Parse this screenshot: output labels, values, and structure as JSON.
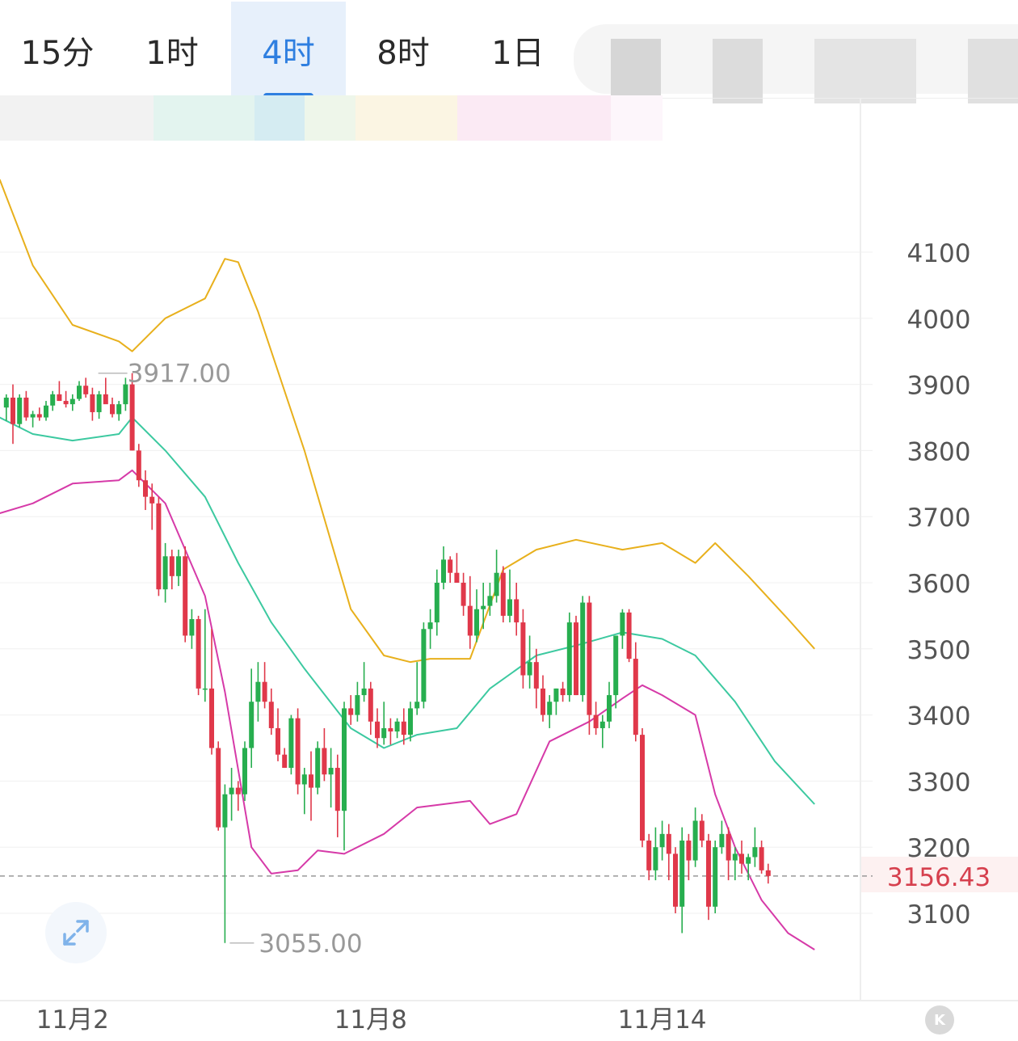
{
  "tabs": [
    {
      "label": "15分",
      "active": false
    },
    {
      "label": "1时",
      "active": false
    },
    {
      "label": "4时",
      "active": true
    },
    {
      "label": "8时",
      "active": false
    },
    {
      "label": "1日",
      "active": false
    }
  ],
  "colors": {
    "active_tab": "#2f7fe0",
    "up_candle": "#27ae4f",
    "down_candle": "#e0384a",
    "upper_band": "#e8b01c",
    "middle_band": "#3cc9a0",
    "lower_band": "#d63aa8",
    "current_price": "#d6404e"
  },
  "icons": {
    "expand": "expand-arrows-icon",
    "k": "k-logo-icon"
  },
  "k_button_label": "K",
  "chart_data": {
    "type": "candlestick",
    "title": "",
    "interval": "4时",
    "y_ticks": [
      4100,
      4000,
      3900,
      3800,
      3700,
      3600,
      3500,
      3400,
      3300,
      3200,
      3100
    ],
    "y_range": [
      3030,
      4230
    ],
    "x_ticks": [
      {
        "label": "11月2",
        "index": 10
      },
      {
        "label": "11月8",
        "index": 55
      },
      {
        "label": "11月14",
        "index": 99
      }
    ],
    "current_price": 3156.43,
    "current_price_label": "3156.43",
    "high_marker": {
      "index": 19,
      "value": 3917.0,
      "label": "3917.00"
    },
    "low_marker": {
      "index": 33,
      "value": 3055.0,
      "label": "3055.00"
    },
    "candles": [
      [
        3865,
        3885,
        3845,
        3880
      ],
      [
        3880,
        3900,
        3810,
        3840
      ],
      [
        3840,
        3885,
        3835,
        3880
      ],
      [
        3880,
        3890,
        3845,
        3850
      ],
      [
        3850,
        3860,
        3835,
        3855
      ],
      [
        3855,
        3865,
        3845,
        3850
      ],
      [
        3850,
        3875,
        3845,
        3868
      ],
      [
        3868,
        3890,
        3860,
        3885
      ],
      [
        3885,
        3905,
        3875,
        3875
      ],
      [
        3875,
        3890,
        3865,
        3870
      ],
      [
        3870,
        3885,
        3860,
        3878
      ],
      [
        3878,
        3905,
        3875,
        3898
      ],
      [
        3898,
        3910,
        3880,
        3885
      ],
      [
        3885,
        3895,
        3845,
        3858
      ],
      [
        3858,
        3890,
        3848,
        3885
      ],
      [
        3885,
        3910,
        3878,
        3870
      ],
      [
        3870,
        3880,
        3850,
        3855
      ],
      [
        3855,
        3875,
        3845,
        3870
      ],
      [
        3870,
        3910,
        3860,
        3900
      ],
      [
        3900,
        3917,
        3800,
        3800
      ],
      [
        3800,
        3810,
        3745,
        3755
      ],
      [
        3755,
        3770,
        3710,
        3730
      ],
      [
        3730,
        3750,
        3680,
        3720
      ],
      [
        3720,
        3730,
        3580,
        3590
      ],
      [
        3590,
        3660,
        3570,
        3640
      ],
      [
        3640,
        3650,
        3590,
        3610
      ],
      [
        3610,
        3650,
        3595,
        3640
      ],
      [
        3640,
        3655,
        3510,
        3520
      ],
      [
        3520,
        3560,
        3500,
        3545
      ],
      [
        3545,
        3550,
        3430,
        3440
      ],
      [
        3440,
        3560,
        3420,
        3440
      ],
      [
        3440,
        3530,
        3340,
        3350
      ],
      [
        3350,
        3360,
        3225,
        3230
      ],
      [
        3230,
        3295,
        3055,
        3280
      ],
      [
        3280,
        3320,
        3240,
        3290
      ],
      [
        3290,
        3300,
        3255,
        3280
      ],
      [
        3280,
        3360,
        3270,
        3350
      ],
      [
        3350,
        3470,
        3320,
        3420
      ],
      [
        3420,
        3480,
        3390,
        3450
      ],
      [
        3450,
        3480,
        3410,
        3420
      ],
      [
        3420,
        3440,
        3370,
        3380
      ],
      [
        3380,
        3410,
        3330,
        3340
      ],
      [
        3340,
        3350,
        3320,
        3320
      ],
      [
        3320,
        3400,
        3310,
        3395
      ],
      [
        3395,
        3410,
        3280,
        3295
      ],
      [
        3295,
        3320,
        3250,
        3310
      ],
      [
        3310,
        3345,
        3240,
        3290
      ],
      [
        3290,
        3360,
        3280,
        3350
      ],
      [
        3350,
        3380,
        3300,
        3310
      ],
      [
        3310,
        3350,
        3260,
        3320
      ],
      [
        3320,
        3340,
        3215,
        3255
      ],
      [
        3255,
        3420,
        3195,
        3410
      ],
      [
        3410,
        3430,
        3385,
        3400
      ],
      [
        3400,
        3450,
        3390,
        3430
      ],
      [
        3430,
        3480,
        3420,
        3440
      ],
      [
        3440,
        3450,
        3370,
        3390
      ],
      [
        3390,
        3410,
        3350,
        3365
      ],
      [
        3365,
        3420,
        3355,
        3380
      ],
      [
        3380,
        3395,
        3355,
        3375
      ],
      [
        3375,
        3395,
        3365,
        3390
      ],
      [
        3390,
        3410,
        3355,
        3370
      ],
      [
        3370,
        3420,
        3360,
        3410
      ],
      [
        3410,
        3480,
        3400,
        3420
      ],
      [
        3420,
        3540,
        3410,
        3530
      ],
      [
        3530,
        3560,
        3500,
        3540
      ],
      [
        3540,
        3620,
        3520,
        3600
      ],
      [
        3600,
        3655,
        3590,
        3635
      ],
      [
        3635,
        3640,
        3600,
        3615
      ],
      [
        3615,
        3645,
        3600,
        3600
      ],
      [
        3600,
        3615,
        3550,
        3565
      ],
      [
        3565,
        3610,
        3500,
        3520
      ],
      [
        3520,
        3590,
        3510,
        3560
      ],
      [
        3560,
        3600,
        3530,
        3565
      ],
      [
        3565,
        3600,
        3550,
        3580
      ],
      [
        3580,
        3650,
        3570,
        3615
      ],
      [
        3615,
        3625,
        3540,
        3550
      ],
      [
        3550,
        3620,
        3540,
        3575
      ],
      [
        3575,
        3600,
        3520,
        3540
      ],
      [
        3540,
        3560,
        3440,
        3460
      ],
      [
        3460,
        3520,
        3440,
        3480
      ],
      [
        3480,
        3500,
        3410,
        3440
      ],
      [
        3440,
        3460,
        3390,
        3400
      ],
      [
        3400,
        3430,
        3380,
        3420
      ],
      [
        3420,
        3440,
        3400,
        3440
      ],
      [
        3440,
        3450,
        3420,
        3430
      ],
      [
        3430,
        3555,
        3420,
        3540
      ],
      [
        3540,
        3550,
        3430,
        3430
      ],
      [
        3430,
        3580,
        3420,
        3570
      ],
      [
        3570,
        3580,
        3370,
        3400
      ],
      [
        3400,
        3420,
        3370,
        3380
      ],
      [
        3380,
        3400,
        3350,
        3390
      ],
      [
        3390,
        3450,
        3380,
        3430
      ],
      [
        3430,
        3520,
        3410,
        3520
      ],
      [
        3520,
        3560,
        3500,
        3555
      ],
      [
        3555,
        3560,
        3480,
        3485
      ],
      [
        3485,
        3510,
        3360,
        3370
      ],
      [
        3370,
        3380,
        3200,
        3210
      ],
      [
        3210,
        3220,
        3150,
        3165
      ],
      [
        3165,
        3230,
        3150,
        3200
      ],
      [
        3200,
        3240,
        3180,
        3220
      ],
      [
        3220,
        3235,
        3150,
        3190
      ],
      [
        3190,
        3200,
        3100,
        3110
      ],
      [
        3110,
        3230,
        3070,
        3210
      ],
      [
        3210,
        3220,
        3150,
        3180
      ],
      [
        3180,
        3260,
        3170,
        3240
      ],
      [
        3240,
        3250,
        3200,
        3210
      ],
      [
        3210,
        3220,
        3090,
        3110
      ],
      [
        3110,
        3210,
        3100,
        3200
      ],
      [
        3200,
        3240,
        3190,
        3220
      ],
      [
        3220,
        3230,
        3150,
        3180
      ],
      [
        3180,
        3200,
        3150,
        3190
      ],
      [
        3190,
        3210,
        3160,
        3175
      ],
      [
        3175,
        3190,
        3150,
        3185
      ],
      [
        3185,
        3230,
        3170,
        3200
      ],
      [
        3200,
        3210,
        3160,
        3165
      ],
      [
        3165,
        3175,
        3145,
        3156.43
      ]
    ],
    "bollinger": {
      "upper": [
        [
          -1,
          4210
        ],
        [
          4,
          4080
        ],
        [
          10,
          3990
        ],
        [
          17,
          3965
        ],
        [
          19,
          3950
        ],
        [
          24,
          4000
        ],
        [
          30,
          4030
        ],
        [
          33,
          4090
        ],
        [
          35,
          4085
        ],
        [
          38,
          4010
        ],
        [
          45,
          3800
        ],
        [
          52,
          3560
        ],
        [
          57,
          3490
        ],
        [
          61,
          3480
        ],
        [
          64,
          3485
        ],
        [
          70,
          3485
        ],
        [
          75,
          3620
        ],
        [
          80,
          3650
        ],
        [
          86,
          3665
        ],
        [
          93,
          3650
        ],
        [
          99,
          3660
        ],
        [
          104,
          3630
        ],
        [
          107,
          3660
        ],
        [
          112,
          3610
        ],
        [
          118,
          3545
        ],
        [
          122,
          3500
        ]
      ],
      "middle": [
        [
          -1,
          3850
        ],
        [
          4,
          3825
        ],
        [
          10,
          3815
        ],
        [
          17,
          3825
        ],
        [
          19,
          3850
        ],
        [
          24,
          3800
        ],
        [
          30,
          3730
        ],
        [
          35,
          3630
        ],
        [
          40,
          3540
        ],
        [
          45,
          3470
        ],
        [
          52,
          3380
        ],
        [
          57,
          3350
        ],
        [
          62,
          3370
        ],
        [
          68,
          3380
        ],
        [
          73,
          3440
        ],
        [
          80,
          3490
        ],
        [
          86,
          3505
        ],
        [
          93,
          3525
        ],
        [
          99,
          3515
        ],
        [
          104,
          3490
        ],
        [
          110,
          3420
        ],
        [
          116,
          3330
        ],
        [
          122,
          3265
        ]
      ],
      "lower": [
        [
          -1,
          3705
        ],
        [
          4,
          3720
        ],
        [
          10,
          3750
        ],
        [
          17,
          3755
        ],
        [
          19,
          3770
        ],
        [
          24,
          3720
        ],
        [
          30,
          3580
        ],
        [
          33,
          3435
        ],
        [
          37,
          3200
        ],
        [
          40,
          3160
        ],
        [
          44,
          3165
        ],
        [
          47,
          3195
        ],
        [
          51,
          3190
        ],
        [
          57,
          3220
        ],
        [
          62,
          3260
        ],
        [
          70,
          3270
        ],
        [
          73,
          3235
        ],
        [
          77,
          3250
        ],
        [
          82,
          3360
        ],
        [
          88,
          3390
        ],
        [
          93,
          3425
        ],
        [
          96,
          3445
        ],
        [
          99,
          3430
        ],
        [
          104,
          3400
        ],
        [
          107,
          3280
        ],
        [
          110,
          3200
        ],
        [
          114,
          3120
        ],
        [
          118,
          3070
        ],
        [
          122,
          3045
        ]
      ]
    }
  }
}
